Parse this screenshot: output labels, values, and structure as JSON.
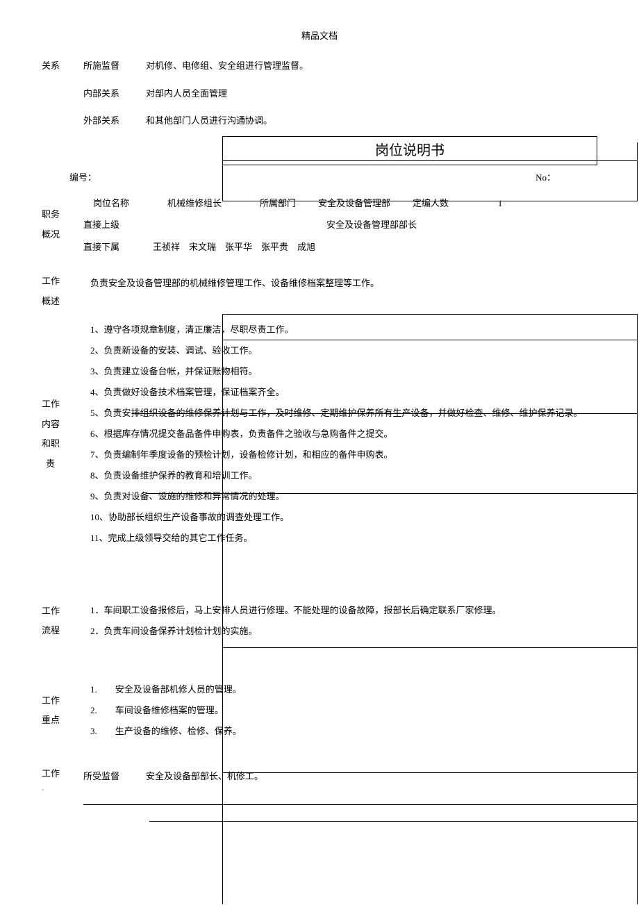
{
  "header": "精品文档",
  "relations": {
    "label": "关系",
    "supervised": {
      "label": "所施监督",
      "value": "对机修、电修组、安全组进行管理监督。"
    },
    "internal": {
      "label": "内部关系",
      "value": "对部内人员全面管理"
    },
    "external": {
      "label": "外部关系",
      "value": "和其他部门人员进行沟通协调。"
    }
  },
  "doc_title": "岗位说明书",
  "meta": {
    "serial_label": "编号：",
    "no_label": "No："
  },
  "position": {
    "section_label": "职务概况",
    "name_label": "岗位名称",
    "name_value": "机械维修组长",
    "dept_label": "所属部门",
    "dept_value": "安全及设备管理部",
    "count_label": "定编人数",
    "count_value": "1",
    "superior_label": "直接上级",
    "superior_value": "安全及设备管理部部长",
    "subordinate_label": "直接下属",
    "subordinate_value": "王祯祥　宋文瑞　张平华　张平贵　成旭"
  },
  "overview": {
    "label": "工作概述",
    "value": "负责安全及设备管理部的机械维修管理工作、设备维修档案整理等工作。"
  },
  "duties": {
    "label": "工作内容和职责",
    "items": [
      "1、遵守各项规章制度，清正廉洁，尽职尽责工作。",
      "2、负责新设备的安装、调试、验收工作。",
      "3、负责建立设备台帐，并保证账物相符。",
      "4、负责做好设备技术档案管理，保证档案齐全。",
      "5、负责安排组织设备的维修保养计划与工作，及时维修、定期维护保养所有生产设备，并做好检查、维修、维护保养记录。",
      "6、根据库存情况提交备品备件申购表，负责备件之验收与急购备件之提交。",
      "7、负责编制年季度设备的预检计划，设备检修计划，和相应的备件申购表。",
      "8、负责设备维护保养的教育和培训工作。",
      "9、负责对设备、设施的维修和异常情况的处理。",
      "10、协助部长组织生产设备事故的调查处理工作。",
      "11、完成上级领导交给的其它工作任务。"
    ]
  },
  "process": {
    "label": "工作流程",
    "items": [
      "1．车间职工设备报修后，马上安排人员进行修理。不能处理的设备故障，报部长后确定联系厂家修理。",
      "2．负责车间设备保养计划检计划的实施。"
    ]
  },
  "focus": {
    "label": "工作重点",
    "items": [
      "1.　　安全及设备部机修人员的管理。",
      "2.　　车间设备维修档案的管理。",
      "3.　　生产设备的维修、检修、保养。"
    ]
  },
  "work_rel": {
    "label": "工作 ·",
    "supervised_label": "所受监督",
    "supervised_value": "安全及设备部部长、机修工。"
  }
}
